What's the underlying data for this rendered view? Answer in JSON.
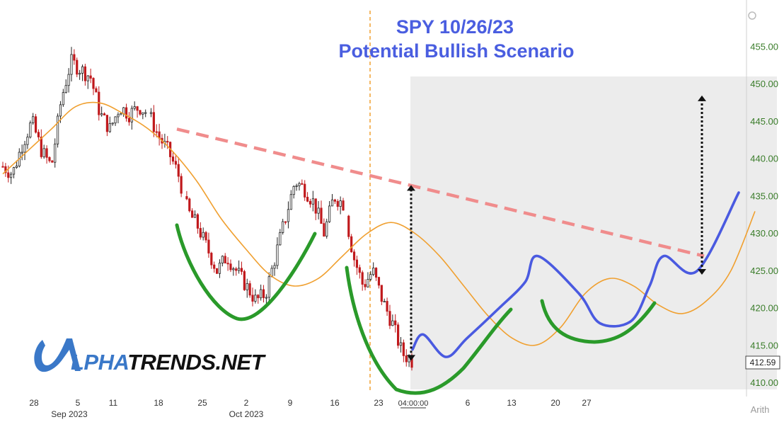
{
  "chart_data": {
    "type": "candlestick",
    "title": "SPY 10/26/23",
    "subtitle": "Potential Bullish Scenario",
    "ylim": [
      408.5,
      460
    ],
    "y_ticks": [
      "410.00",
      "415.00",
      "420.00",
      "425.00",
      "430.00",
      "435.00",
      "440.00",
      "445.00",
      "450.00",
      "455.00"
    ],
    "y_tick_values": [
      410,
      415,
      420,
      425,
      430,
      435,
      440,
      445,
      450,
      455
    ],
    "x_ticks": [
      "28",
      "5",
      "11",
      "18",
      "25",
      "2",
      "9",
      "16",
      "23",
      "04:00:00",
      "6",
      "13",
      "20",
      "27"
    ],
    "x_month_labels": [
      "Sep 2023",
      "Oct 2023"
    ],
    "last_price_label": "412.59",
    "last_price": 412.59,
    "scale_label": "Arith",
    "watermark": "ALPHATRENDS.NET",
    "series": [
      {
        "type": "candlestick",
        "close_path": [
          439,
          438,
          442,
          445,
          441,
          439,
          448,
          453,
          452,
          451,
          446,
          444,
          447,
          446,
          447,
          446,
          443,
          441,
          438,
          433,
          431,
          428,
          425,
          427,
          425,
          423,
          421,
          422,
          427,
          432,
          437,
          436,
          434,
          430,
          435,
          434,
          427,
          423,
          425,
          421,
          418,
          414,
          413
        ]
      },
      {
        "type": "line",
        "role": "moving-average",
        "color": "#f0a030",
        "values": [
          438,
          441,
          444,
          447,
          447.5,
          446,
          444,
          441,
          437,
          432,
          428,
          424.5,
          423,
          424,
          427,
          430,
          431.5,
          430,
          427,
          423,
          419,
          416,
          415.1,
          417.5,
          422,
          424,
          423,
          420.5,
          419.3,
          421,
          425,
          433
        ]
      },
      {
        "type": "line",
        "role": "projected-path",
        "color": "#4a5ae0",
        "values": [
          414.5,
          416.5,
          413.5,
          416,
          420,
          423.5,
          427,
          422,
          418,
          418.3,
          423,
          427,
          425,
          435.5
        ]
      }
    ],
    "annotations": [
      {
        "type": "trendline",
        "style": "dashed",
        "color": "#f08c8c",
        "from": 444,
        "to": 427
      },
      {
        "type": "arrow",
        "style": "dotted",
        "from": 413,
        "to": 436.5
      },
      {
        "type": "arrow",
        "style": "dotted",
        "from": 424.5,
        "to": 448.5
      },
      {
        "type": "cup-curve",
        "color": "#2a9a2a",
        "count": 3
      },
      {
        "type": "vline",
        "style": "dashed",
        "color": "#f0a030"
      },
      {
        "type": "shaded-region",
        "color": "#ececec"
      }
    ]
  }
}
